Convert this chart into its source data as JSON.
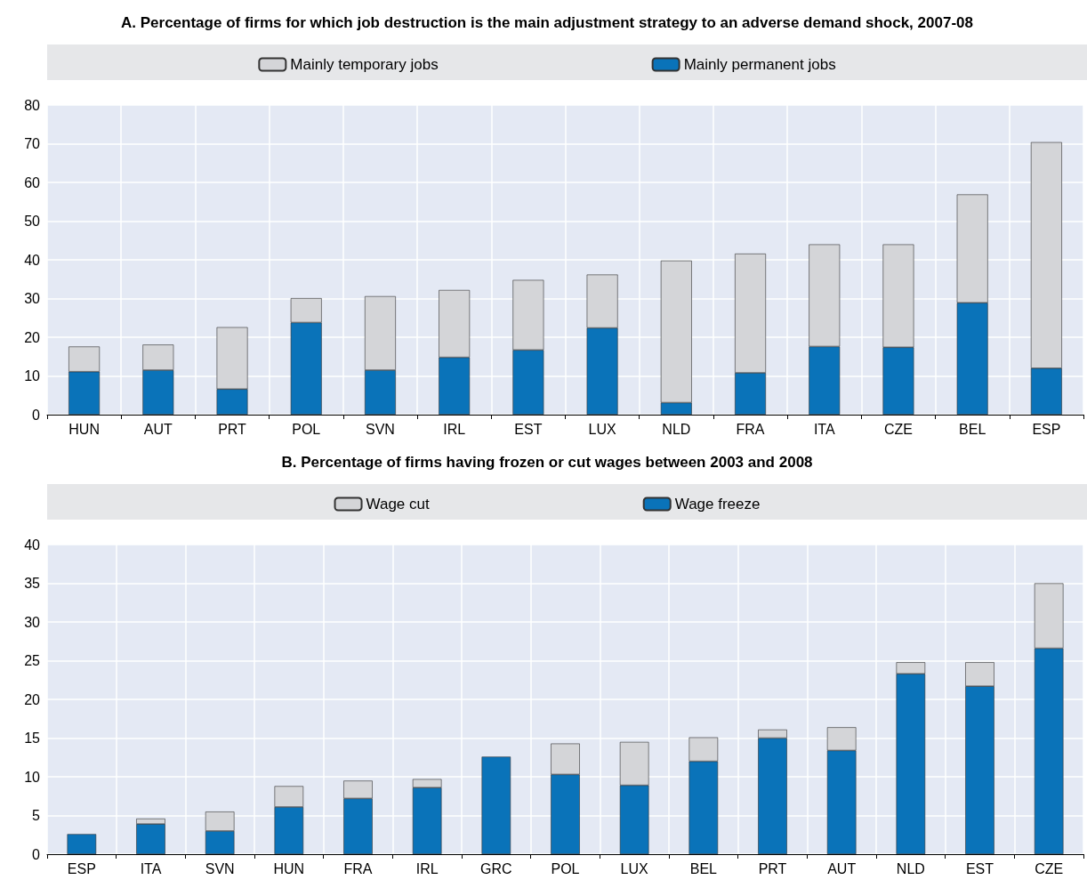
{
  "chart_data": [
    {
      "type": "bar",
      "title": "A. Percentage of firms for which job destruction is the main adjustment strategy to an adverse demand shock, 2007-08",
      "categories": [
        "HUN",
        "AUT",
        "PRT",
        "POL",
        "SVN",
        "IRL",
        "EST",
        "LUX",
        "NLD",
        "FRA",
        "ITA",
        "CZE",
        "BEL",
        "ESP"
      ],
      "stacked": true,
      "legend": "top",
      "grid": true,
      "ylim": [
        0,
        80
      ],
      "yticks": [
        0,
        10,
        20,
        30,
        40,
        50,
        60,
        70,
        80
      ],
      "series": [
        {
          "name": "Mainly permanent jobs",
          "color": "#0a73b9",
          "values": [
            11.1,
            11.5,
            6.6,
            23.8,
            11.5,
            14.8,
            16.7,
            22.4,
            3.1,
            10.8,
            17.6,
            17.4,
            28.9,
            12
          ]
        },
        {
          "name": "Mainly temporary jobs",
          "color": "#d4d5d8",
          "values": [
            6.5,
            6.6,
            16,
            6.3,
            19.1,
            17.4,
            18.1,
            13.8,
            36.7,
            30.8,
            26.4,
            26.6,
            28,
            58.4
          ]
        }
      ]
    },
    {
      "type": "bar",
      "title": "B. Percentage of firms having frozen or cut wages between 2003 and 2008",
      "categories": [
        "ESP",
        "ITA",
        "SVN",
        "HUN",
        "FRA",
        "IRL",
        "GRC",
        "POL",
        "LUX",
        "BEL",
        "PRT",
        "AUT",
        "NLD",
        "EST",
        "CZE"
      ],
      "stacked": true,
      "legend": "top",
      "grid": true,
      "ylim": [
        0,
        40
      ],
      "yticks": [
        0,
        5,
        10,
        15,
        20,
        25,
        30,
        35,
        40
      ],
      "series": [
        {
          "name": "Wage freeze",
          "color": "#0a73b9",
          "values": [
            2.6,
            3.9,
            3.0,
            6.1,
            7.2,
            8.6,
            12.6,
            10.3,
            8.9,
            12,
            15,
            13.4,
            23.3,
            21.7,
            26.6
          ]
        },
        {
          "name": "Wage cut",
          "color": "#d4d5d8",
          "values": [
            null,
            0.7,
            2.5,
            2.7,
            2.3,
            1.1,
            null,
            4,
            5.6,
            3.1,
            1.1,
            3,
            1.5,
            3.1,
            8.4
          ]
        }
      ]
    }
  ]
}
